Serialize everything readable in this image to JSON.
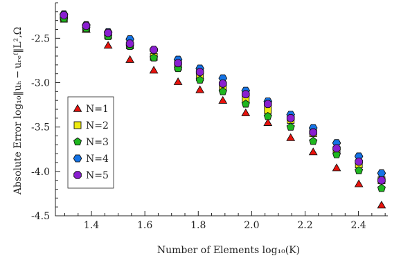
{
  "chart_data": {
    "type": "scatter",
    "title": "",
    "xlabel": "Number of Elements log₁₀(K)",
    "ylabel": "Absolute Error log₁₀‖uₕ − uᵣₑᶠ‖L²,Ω",
    "xlim": [
      1.265,
      2.51
    ],
    "ylim": [
      -4.5,
      -2.1
    ],
    "x_ticks": [
      1.4,
      1.6,
      1.8,
      2.0,
      2.2,
      2.4
    ],
    "x_tick_labels": [
      "1.4",
      "1.6",
      "1.8",
      "2.0",
      "2.2",
      "2.4"
    ],
    "y_ticks": [
      -2.5,
      -3.0,
      -3.5,
      -4.0,
      -4.5
    ],
    "y_tick_labels": [
      "-2.5",
      "-3.0",
      "-3.5",
      "-4.0",
      "-4.5"
    ],
    "grid": false,
    "legend_position": "left-middle",
    "x": [
      1.2967,
      1.3802,
      1.4624,
      1.5441,
      1.6335,
      1.7243,
      1.8062,
      1.8921,
      1.9777,
      2.0607,
      2.1461,
      2.2304,
      2.3181,
      2.4014,
      2.4864
    ],
    "series": [
      {
        "name": "N=1",
        "marker": "triangle",
        "color": "#e8120c",
        "values": [
          -2.25,
          -2.4,
          -2.58,
          -2.74,
          -2.86,
          -2.99,
          -3.08,
          -3.2,
          -3.34,
          -3.45,
          -3.62,
          -3.78,
          -3.96,
          -4.14,
          -4.38
        ]
      },
      {
        "name": "N=2",
        "marker": "square",
        "color": "#eeea10",
        "values": [
          -2.28,
          -2.38,
          -2.47,
          -2.58,
          -2.71,
          -2.82,
          -2.94,
          -3.06,
          -3.18,
          -3.31,
          -3.42,
          -3.57,
          -3.76,
          -3.92,
          -4.1
        ]
      },
      {
        "name": "N=3",
        "marker": "pentagon",
        "color": "#1fb71f",
        "values": [
          -2.28,
          -2.39,
          -2.48,
          -2.59,
          -2.72,
          -2.84,
          -2.97,
          -3.1,
          -3.24,
          -3.38,
          -3.5,
          -3.66,
          -3.81,
          -3.99,
          -4.19
        ]
      },
      {
        "name": "N=4",
        "marker": "hexagon",
        "color": "#1473e6",
        "values": [
          -2.23,
          -2.35,
          -2.43,
          -2.51,
          -2.63,
          -2.74,
          -2.84,
          -2.95,
          -3.09,
          -3.21,
          -3.36,
          -3.51,
          -3.68,
          -3.83,
          -4.02
        ]
      },
      {
        "name": "N=5",
        "marker": "octagon",
        "color": "#8a1fd0",
        "values": [
          -2.24,
          -2.36,
          -2.44,
          -2.56,
          -2.63,
          -2.78,
          -2.88,
          -3.01,
          -3.13,
          -3.24,
          -3.4,
          -3.56,
          -3.74,
          -3.89,
          -4.1
        ]
      }
    ]
  }
}
